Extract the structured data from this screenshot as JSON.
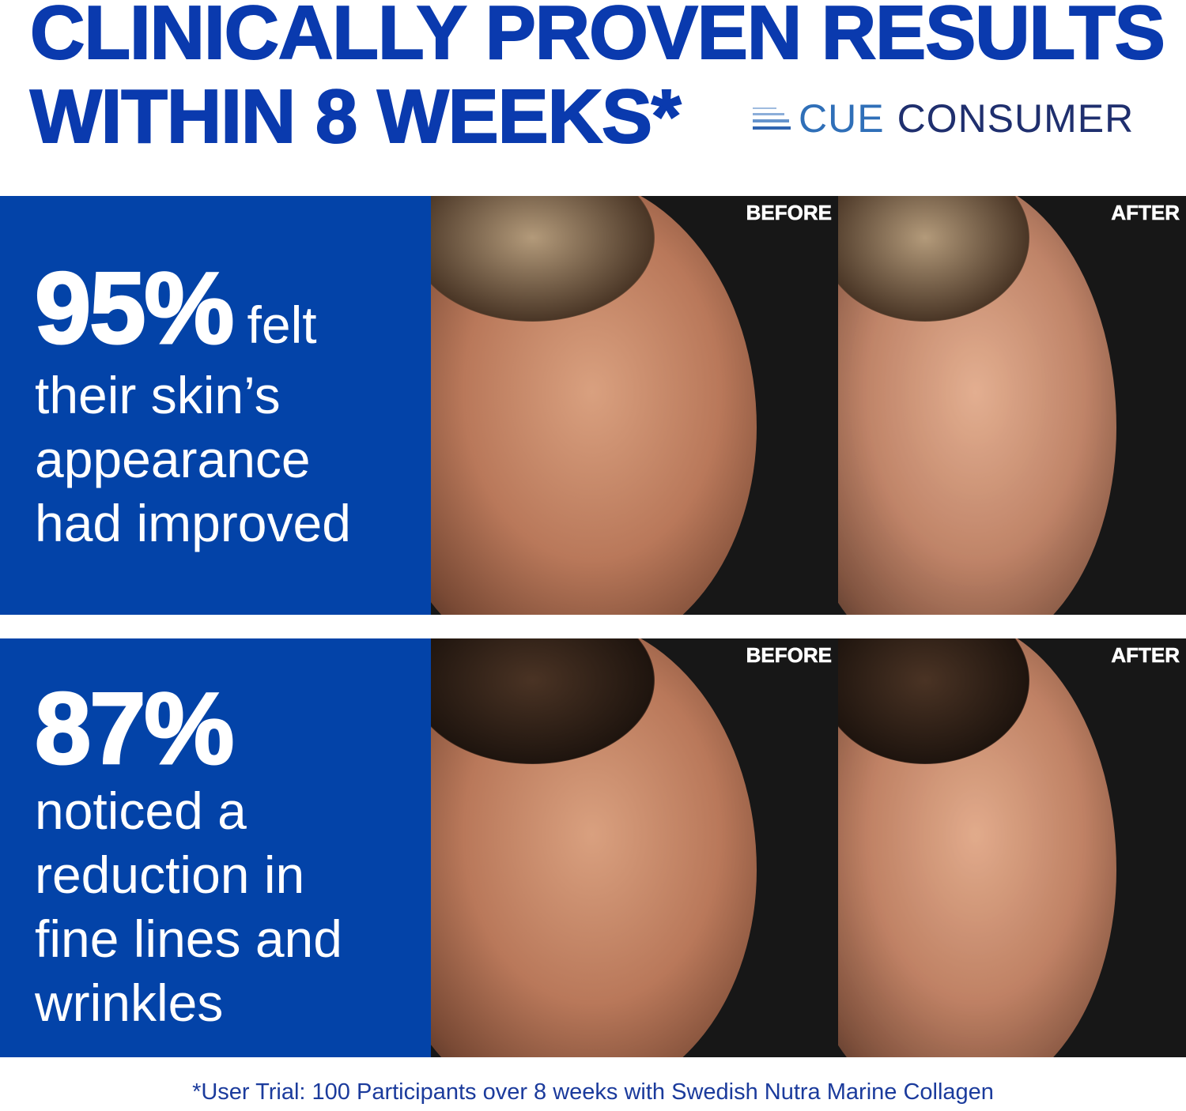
{
  "header": {
    "title_line1": "CLINICALLY PROVEN RESULTS",
    "title_line2": "WITHIN 8 WEEKS*",
    "logo": {
      "word1": "CUE",
      "word2": "CONSUMER"
    }
  },
  "stats": [
    {
      "value": "95%",
      "lead": "felt",
      "lines": [
        "their skin’s",
        "appearance",
        "had improved"
      ],
      "before_label": "BEFORE",
      "after_label": "AFTER"
    },
    {
      "value": "87%",
      "lines": [
        "noticed a",
        "reduction in",
        "fine lines and",
        "wrinkles"
      ],
      "before_label": "BEFORE",
      "after_label": "AFTER"
    }
  ],
  "footnote": "*User Trial: 100 Participants over 8 weeks with Swedish Nutra Marine Collagen",
  "colors": {
    "brand_blue": "#0343a8",
    "title_blue": "#0a3aae",
    "logo_light": "#2f6fb8",
    "logo_dark": "#1f2f6e"
  }
}
